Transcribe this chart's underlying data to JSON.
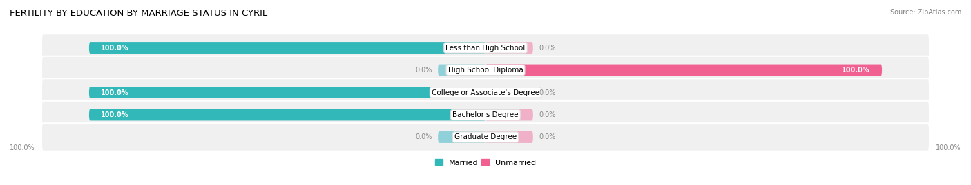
{
  "title": "FERTILITY BY EDUCATION BY MARRIAGE STATUS IN CYRIL",
  "source": "Source: ZipAtlas.com",
  "categories": [
    "Less than High School",
    "High School Diploma",
    "College or Associate's Degree",
    "Bachelor's Degree",
    "Graduate Degree"
  ],
  "married": [
    100.0,
    0.0,
    100.0,
    100.0,
    0.0
  ],
  "unmarried": [
    0.0,
    100.0,
    0.0,
    0.0,
    0.0
  ],
  "married_color": "#32b8b8",
  "unmarried_color": "#f06090",
  "married_light_color": "#90d0d8",
  "unmarried_light_color": "#f0b0c8",
  "row_bg_color": "#f0f0f0",
  "title_fontsize": 9.5,
  "label_fontsize": 7.5,
  "value_fontsize": 7,
  "legend_fontsize": 8,
  "max_val": 100.0,
  "stub_val": 12.0,
  "x_axis_left_label": "100.0%",
  "x_axis_right_label": "100.0%"
}
